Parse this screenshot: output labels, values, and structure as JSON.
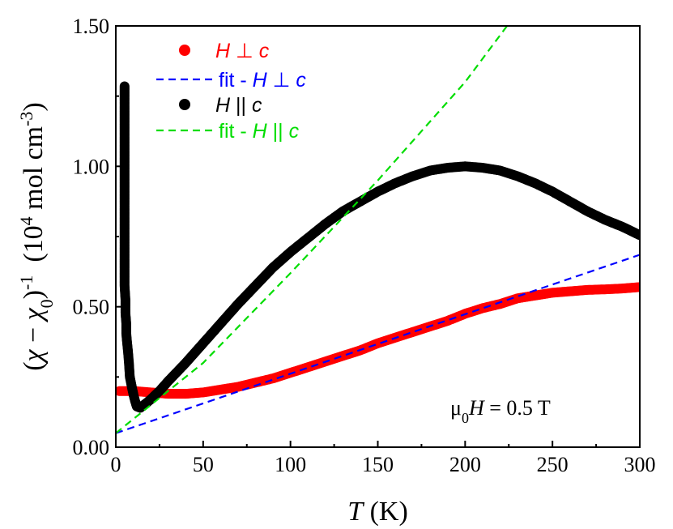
{
  "chart_data": {
    "type": "scatter",
    "xlim": [
      0,
      300
    ],
    "ylim": [
      0.0,
      1.5
    ],
    "x_ticks": [
      "0",
      "50",
      "100",
      "150",
      "200",
      "250",
      "300"
    ],
    "y_ticks": [
      "0.00",
      "0.50",
      "1.00",
      "1.50"
    ],
    "x_ticks_values": [
      0,
      50,
      100,
      150,
      200,
      250,
      300
    ],
    "y_ticks_values": [
      0.0,
      0.5,
      1.0,
      1.5
    ],
    "xlabel": {
      "var": "T",
      "unit": " (K)"
    },
    "ylabel": {
      "pre": "(",
      "chi": "χ",
      "minus": " − ",
      "chi0": "χ",
      "sub0": "0",
      "close": ")",
      "sup": "-1",
      "unitA": "(10",
      "sup4": "4",
      "unitB": " mol cm",
      "sup3": "-3",
      "unitC": ")"
    },
    "annotation": {
      "pre": "μ",
      "sub": "0",
      "var": "H",
      "post": " = 0.5 T"
    },
    "grid": false,
    "legend_position": "top-left",
    "legend": [
      {
        "var": "H",
        "rest": " ⊥ c",
        "prefix": "",
        "style": "marker",
        "color": "#ff0000"
      },
      {
        "var": "H",
        "rest": " ⊥ c",
        "prefix": "fit - ",
        "style": "dash",
        "color": "#0000ff"
      },
      {
        "var": "H",
        "rest": " || c",
        "prefix": "",
        "style": "marker",
        "color": "#000000"
      },
      {
        "var": "H",
        "rest": " || c",
        "prefix": "fit - ",
        "style": "dash",
        "color": "#00dd00"
      }
    ],
    "series": [
      {
        "style": "marker",
        "color": "#ff0000",
        "x": [
          2,
          10,
          20,
          30,
          40,
          50,
          60,
          70,
          80,
          90,
          100,
          110,
          120,
          130,
          140,
          150,
          160,
          170,
          180,
          190,
          200,
          210,
          220,
          230,
          240,
          250,
          260,
          270,
          280,
          290,
          300
        ],
        "y": [
          0.2,
          0.2,
          0.195,
          0.19,
          0.19,
          0.195,
          0.205,
          0.215,
          0.23,
          0.245,
          0.265,
          0.285,
          0.305,
          0.325,
          0.345,
          0.37,
          0.39,
          0.41,
          0.43,
          0.45,
          0.475,
          0.495,
          0.51,
          0.53,
          0.54,
          0.55,
          0.555,
          0.56,
          0.562,
          0.565,
          0.57
        ]
      },
      {
        "style": "dash",
        "color": "#0000ff",
        "x": [
          0,
          300
        ],
        "y": [
          0.05,
          0.685
        ]
      },
      {
        "style": "marker",
        "color": "#000000",
        "x": [
          5,
          5,
          5,
          5,
          5,
          5.5,
          5.5,
          6,
          6,
          6.5,
          7,
          7.5,
          8,
          9,
          10,
          11,
          12,
          14,
          17,
          20,
          25,
          30,
          40,
          50,
          60,
          70,
          80,
          90,
          100,
          110,
          120,
          130,
          140,
          150,
          160,
          170,
          180,
          190,
          200,
          210,
          220,
          230,
          240,
          250,
          260,
          270,
          280,
          290,
          300
        ],
        "y": [
          1.285,
          0.99,
          0.795,
          0.665,
          0.575,
          0.525,
          0.48,
          0.44,
          0.405,
          0.37,
          0.34,
          0.3,
          0.25,
          0.22,
          0.19,
          0.165,
          0.145,
          0.14,
          0.155,
          0.17,
          0.2,
          0.235,
          0.3,
          0.37,
          0.44,
          0.51,
          0.575,
          0.64,
          0.695,
          0.745,
          0.795,
          0.84,
          0.875,
          0.91,
          0.94,
          0.965,
          0.985,
          0.995,
          1.0,
          0.995,
          0.985,
          0.965,
          0.94,
          0.91,
          0.875,
          0.84,
          0.81,
          0.785,
          0.755
        ]
      },
      {
        "style": "dash",
        "color": "#00dd00",
        "x": [
          0,
          10,
          20,
          50,
          100,
          150,
          200,
          224
        ],
        "y": [
          0.05,
          0.1,
          0.15,
          0.3,
          0.62,
          0.95,
          1.3,
          1.5
        ]
      }
    ]
  }
}
